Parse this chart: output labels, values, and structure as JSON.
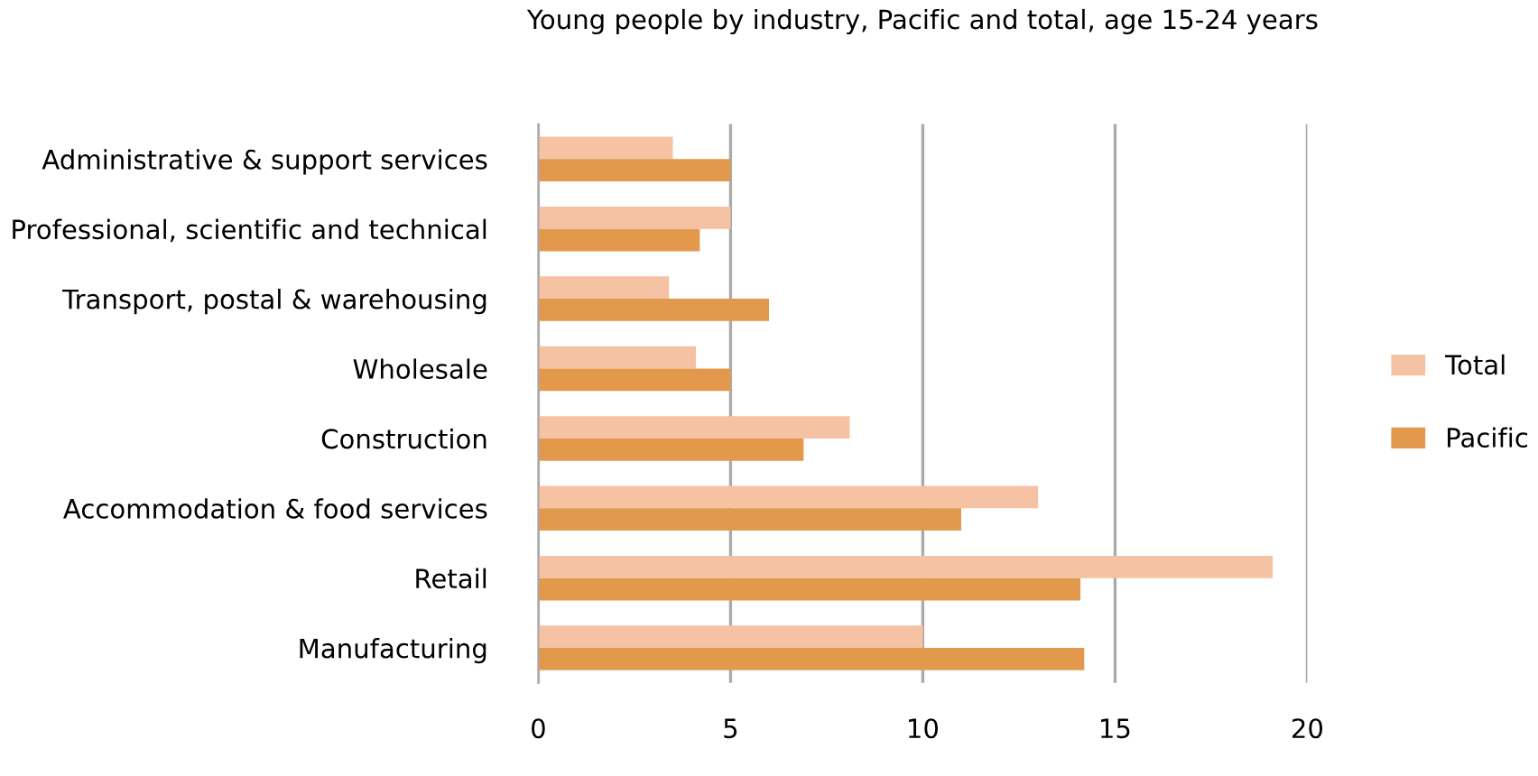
{
  "chart_data": {
    "type": "bar",
    "orientation": "horizontal",
    "title": "Young people by industry, Pacific and total, age 15-24 years",
    "categories": [
      "Administrative & support services",
      "Professional, scientific and technical",
      "Transport, postal & warehousing",
      "Wholesale",
      "Construction",
      "Accommodation & food services",
      "Retail",
      "Manufacturing"
    ],
    "series": [
      {
        "name": "Total",
        "color": "#f5c2a3",
        "values": [
          3.5,
          5.0,
          3.4,
          4.1,
          8.1,
          13.0,
          19.1,
          10.0
        ]
      },
      {
        "name": "Pacific",
        "color": "#e3994c",
        "values": [
          5.0,
          4.2,
          6.0,
          5.0,
          6.9,
          11.0,
          14.1,
          14.2
        ]
      }
    ],
    "xlim": [
      0,
      20
    ],
    "xticks": [
      0,
      5,
      10,
      15,
      20
    ],
    "grid": "x",
    "legend": "right"
  }
}
